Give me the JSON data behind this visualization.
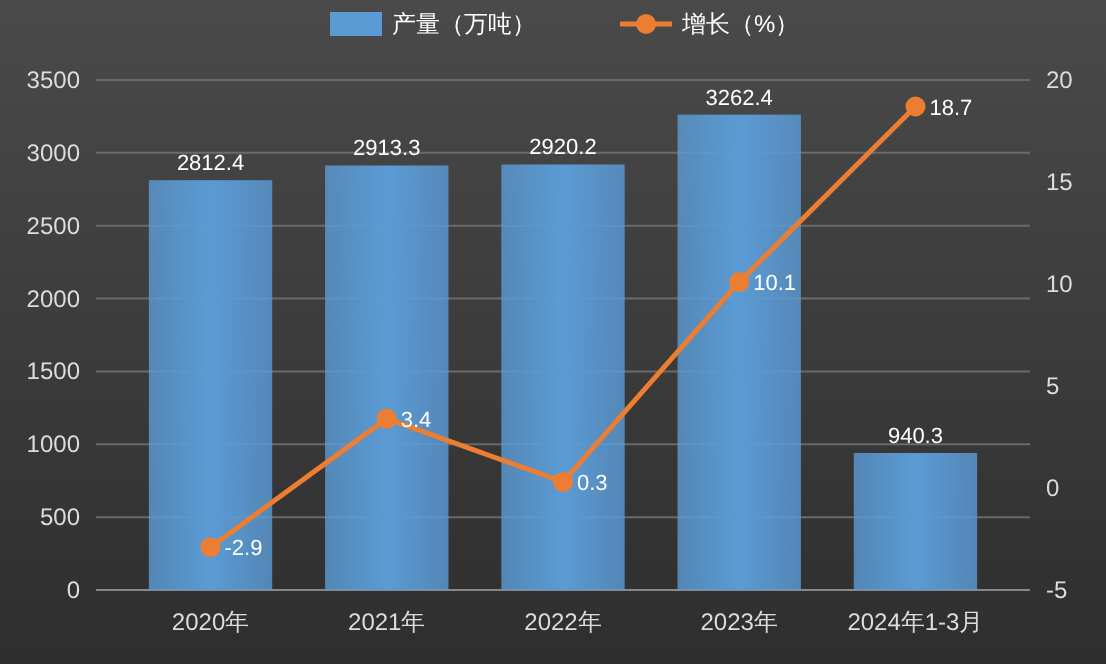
{
  "chart_data": {
    "type": "bar",
    "categories": [
      "2020年",
      "2021年",
      "2022年",
      "2023年",
      "2024年1-3月"
    ],
    "series": [
      {
        "name": "产量（万吨）",
        "color": "#5b9bd5",
        "values": [
          2812.4,
          2913.3,
          2920.2,
          3262.4,
          940.3
        ]
      },
      {
        "name": "增长（%）",
        "type": "line",
        "axis": "y2",
        "color": "#ed7d31",
        "values": [
          -2.9,
          3.4,
          0.3,
          10.1,
          18.7
        ]
      }
    ],
    "ylim": [
      0,
      3500
    ],
    "yticks": [
      0,
      500,
      1000,
      1500,
      2000,
      2500,
      3000,
      3500
    ],
    "y2lim": [
      -5,
      20
    ],
    "y2ticks": [
      -5,
      0,
      5,
      10,
      15,
      20
    ],
    "grid": "y",
    "legend": "top",
    "marker": "circle",
    "line_style": "solid",
    "data_labels": true
  }
}
